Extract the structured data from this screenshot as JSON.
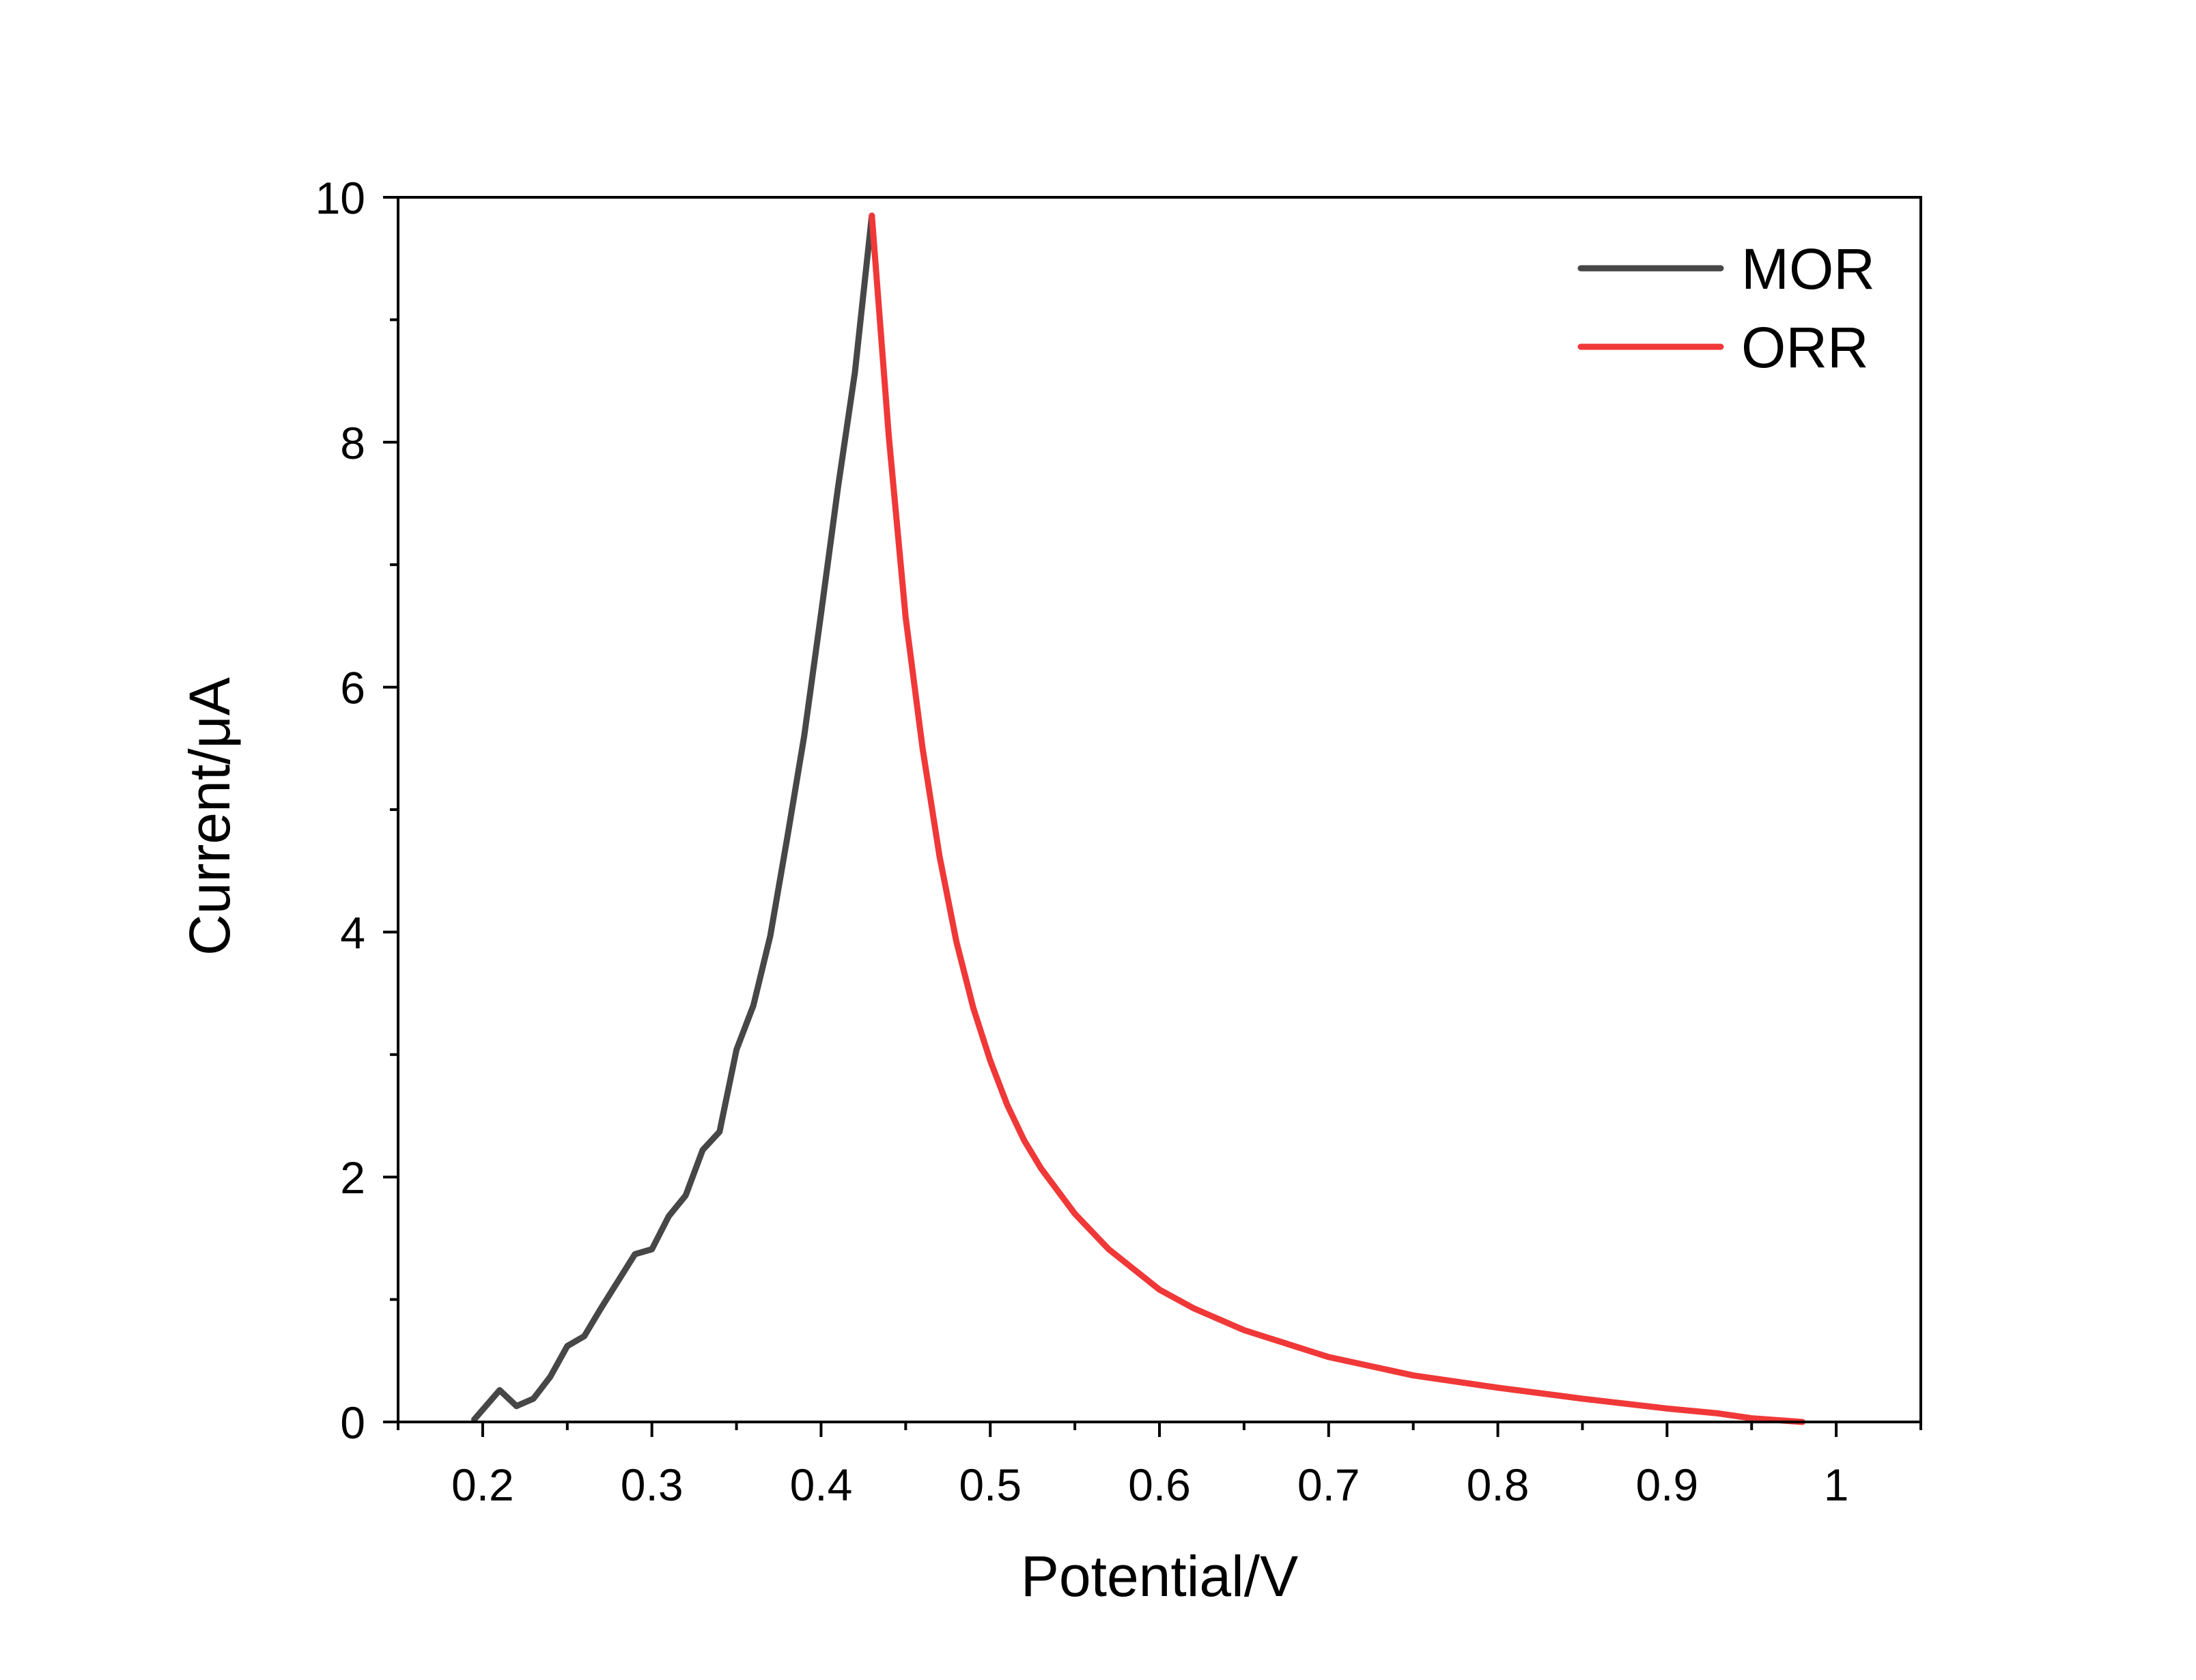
{
  "chart_data": {
    "type": "line",
    "title": "",
    "xlabel": "Potential/V",
    "ylabel": "Current/μA",
    "xlim": [
      0.15,
      1.05
    ],
    "ylim": [
      0,
      10
    ],
    "x_major_ticks": [
      0.2,
      0.3,
      0.4,
      0.5,
      0.6,
      0.7,
      0.8,
      0.9,
      1.0
    ],
    "x_tick_labels": [
      "0.2",
      "0.3",
      "0.4",
      "0.5",
      "0.6",
      "0.7",
      "0.8",
      "0.9",
      "1"
    ],
    "y_major_ticks": [
      0,
      2,
      4,
      6,
      8,
      10
    ],
    "y_tick_labels": [
      "0",
      "2",
      "4",
      "6",
      "8",
      "10"
    ],
    "grid": false,
    "legend_position": "top-right",
    "series": [
      {
        "name": "MOR",
        "color": "#474747",
        "x": [
          0.195,
          0.21,
          0.22,
          0.23,
          0.24,
          0.25,
          0.26,
          0.27,
          0.28,
          0.29,
          0.3,
          0.31,
          0.32,
          0.33,
          0.34,
          0.35,
          0.36,
          0.37,
          0.38,
          0.39,
          0.4,
          0.41,
          0.42,
          0.43
        ],
        "y": [
          0.02,
          0.26,
          0.13,
          0.19,
          0.37,
          0.62,
          0.7,
          0.93,
          1.15,
          1.37,
          1.41,
          1.68,
          1.85,
          2.22,
          2.37,
          3.04,
          3.4,
          3.97,
          4.77,
          5.6,
          6.6,
          7.63,
          8.57,
          9.85
        ]
      },
      {
        "name": "ORR",
        "color": "#f03838",
        "x": [
          0.43,
          0.44,
          0.45,
          0.46,
          0.47,
          0.48,
          0.49,
          0.5,
          0.51,
          0.52,
          0.53,
          0.55,
          0.57,
          0.6,
          0.62,
          0.65,
          0.7,
          0.75,
          0.8,
          0.85,
          0.9,
          0.93,
          0.95,
          0.98
        ],
        "y": [
          9.85,
          8.05,
          6.57,
          5.5,
          4.62,
          3.92,
          3.38,
          2.95,
          2.59,
          2.3,
          2.07,
          1.7,
          1.41,
          1.08,
          0.93,
          0.75,
          0.53,
          0.38,
          0.28,
          0.19,
          0.11,
          0.07,
          0.03,
          0.0
        ]
      }
    ]
  }
}
